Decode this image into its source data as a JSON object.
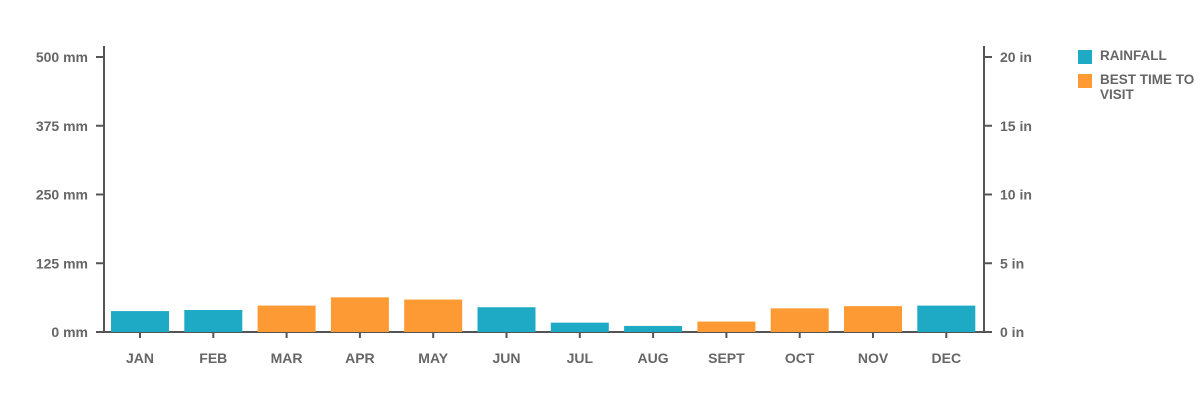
{
  "chart_data": {
    "type": "bar",
    "categories": [
      "JAN",
      "FEB",
      "MAR",
      "APR",
      "MAY",
      "JUN",
      "JUL",
      "AUG",
      "SEPT",
      "OCT",
      "NOV",
      "DEC"
    ],
    "values": [
      38,
      40,
      48,
      63,
      59,
      45,
      17,
      11,
      19,
      43,
      47,
      48
    ],
    "highlight": [
      false,
      false,
      true,
      true,
      true,
      false,
      false,
      false,
      true,
      true,
      true,
      false
    ],
    "ylim": [
      0,
      500
    ],
    "y_ticks": [
      "0 mm",
      "125 mm",
      "250 mm",
      "375 mm",
      "500 mm"
    ],
    "y2_ticks": [
      "0 in",
      "5 in",
      "10 in",
      "15 in",
      "20 in"
    ],
    "grid": false,
    "legend_position": "right",
    "colors": {
      "rainfall": "#1eaac4",
      "best_time": "#fd9a33"
    }
  },
  "legend": {
    "rainfall": "RAINFALL",
    "best_time": "BEST TIME TO VISIT"
  }
}
